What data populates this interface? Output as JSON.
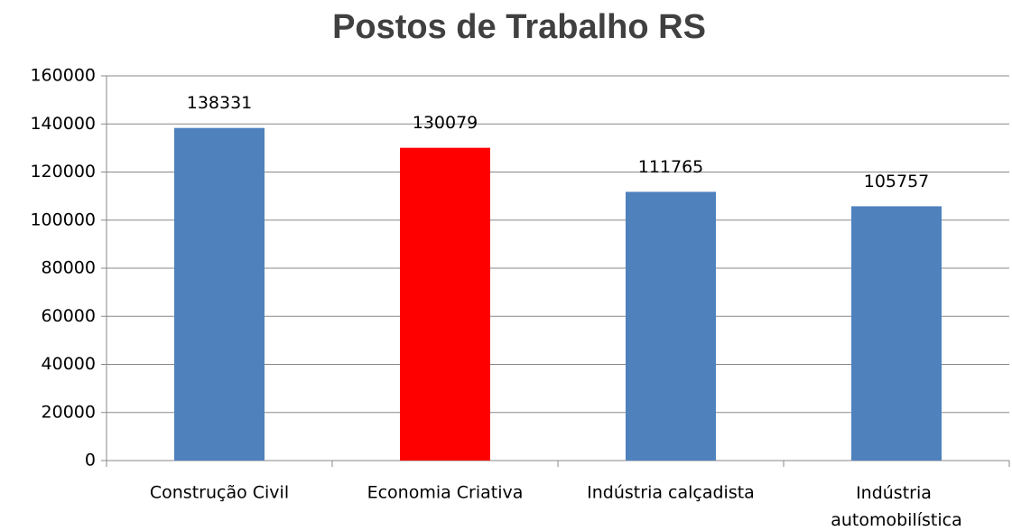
{
  "chart_data": {
    "type": "bar",
    "title": "Postos de Trabalho RS",
    "categories": [
      "Construção Civil",
      "Economia Criativa",
      "Indústria calçadista",
      "Indústria automobilística"
    ],
    "values": [
      138331,
      130079,
      111765,
      105757
    ],
    "colors": [
      "#4f81bd",
      "#ff0000",
      "#4f81bd",
      "#4f81bd"
    ],
    "ylim": [
      0,
      160000
    ],
    "yticks": [
      0,
      20000,
      40000,
      60000,
      80000,
      100000,
      120000,
      140000,
      160000
    ],
    "grid": true
  }
}
